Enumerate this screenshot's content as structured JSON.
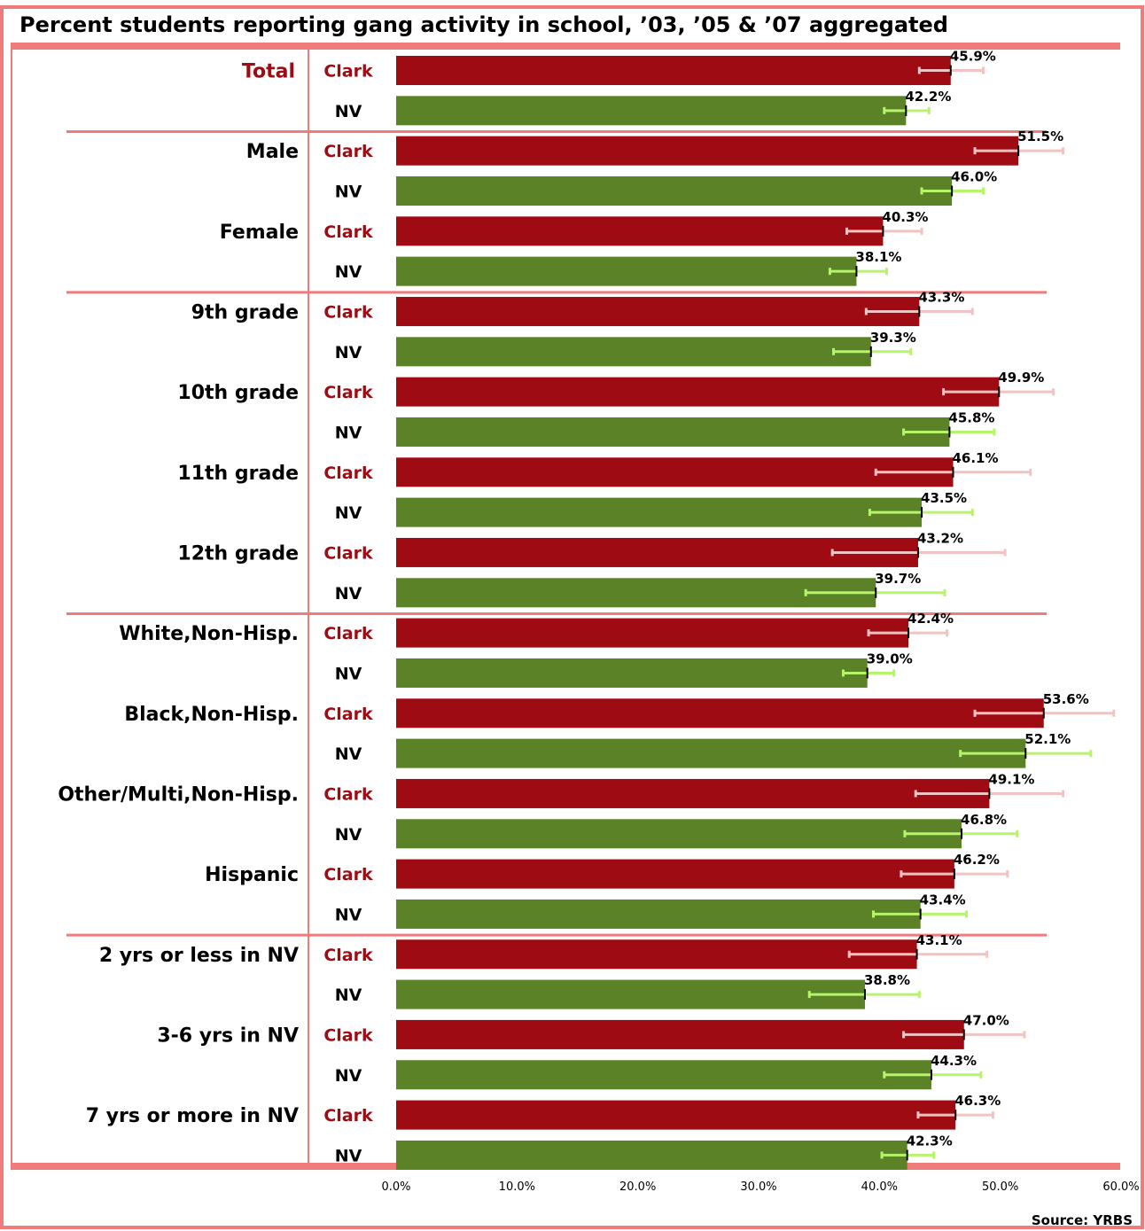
{
  "title": "Percent students reporting gang activity in school, ’03, ’05 & ’07 aggregated",
  "source": "Source: YRBS",
  "colors": {
    "frame": "#f07b7b",
    "clark_bar": "#9e0b12",
    "nv_bar": "#5b8226",
    "clark_error": "#f4c2c2",
    "nv_error": "#b6f46a",
    "total_label": "#9e0b12",
    "clark_label": "#9e0b12"
  },
  "chart_data": {
    "type": "bar",
    "orientation": "horizontal",
    "title": "Percent students reporting gang activity in school, ’03, ’05 & ’07 aggregated",
    "xlim": [
      0,
      60
    ],
    "x_ticks": [
      "0.0%",
      "10.0%",
      "20.0%",
      "30.0%",
      "40.0%",
      "50.0%",
      "60.0%"
    ],
    "x_tick_values": [
      0,
      10,
      20,
      30,
      40,
      50,
      60
    ],
    "series_names": [
      "Clark",
      "NV"
    ],
    "groups": [
      {
        "label": "Total",
        "section": 0,
        "rows": [
          {
            "series": "Clark",
            "value": 45.9,
            "value_label": "45.9%",
            "ci": [
              43.3,
              48.6
            ]
          },
          {
            "series": "NV",
            "value": 42.2,
            "value_label": "42.2%",
            "ci": [
              40.4,
              44.1
            ]
          }
        ]
      },
      {
        "label": "Male",
        "section": 1,
        "rows": [
          {
            "series": "Clark",
            "value": 51.5,
            "value_label": "51.5%",
            "ci": [
              47.9,
              55.2
            ]
          },
          {
            "series": "NV",
            "value": 46.0,
            "value_label": "46.0%",
            "ci": [
              43.5,
              48.6
            ]
          }
        ]
      },
      {
        "label": "Female",
        "section": 1,
        "rows": [
          {
            "series": "Clark",
            "value": 40.3,
            "value_label": "40.3%",
            "ci": [
              37.3,
              43.5
            ]
          },
          {
            "series": "NV",
            "value": 38.1,
            "value_label": "38.1%",
            "ci": [
              35.9,
              40.6
            ]
          }
        ]
      },
      {
        "label": "9th grade",
        "section": 2,
        "rows": [
          {
            "series": "Clark",
            "value": 43.3,
            "value_label": "43.3%",
            "ci": [
              38.9,
              47.7
            ]
          },
          {
            "series": "NV",
            "value": 39.3,
            "value_label": "39.3%",
            "ci": [
              36.2,
              42.6
            ]
          }
        ]
      },
      {
        "label": "10th grade",
        "section": 2,
        "rows": [
          {
            "series": "Clark",
            "value": 49.9,
            "value_label": "49.9%",
            "ci": [
              45.3,
              54.4
            ]
          },
          {
            "series": "NV",
            "value": 45.8,
            "value_label": "45.8%",
            "ci": [
              42.0,
              49.5
            ]
          }
        ]
      },
      {
        "label": "11th grade",
        "section": 2,
        "rows": [
          {
            "series": "Clark",
            "value": 46.1,
            "value_label": "46.1%",
            "ci": [
              39.7,
              52.5
            ]
          },
          {
            "series": "NV",
            "value": 43.5,
            "value_label": "43.5%",
            "ci": [
              39.2,
              47.7
            ]
          }
        ]
      },
      {
        "label": "12th grade",
        "section": 2,
        "rows": [
          {
            "series": "Clark",
            "value": 43.2,
            "value_label": "43.2%",
            "ci": [
              36.1,
              50.4
            ]
          },
          {
            "series": "NV",
            "value": 39.7,
            "value_label": "39.7%",
            "ci": [
              33.9,
              45.4
            ]
          }
        ]
      },
      {
        "label": "White,Non-Hisp.",
        "section": 3,
        "rows": [
          {
            "series": "Clark",
            "value": 42.4,
            "value_label": "42.4%",
            "ci": [
              39.1,
              45.6
            ]
          },
          {
            "series": "NV",
            "value": 39.0,
            "value_label": "39.0%",
            "ci": [
              37.0,
              41.2
            ]
          }
        ]
      },
      {
        "label": "Black,Non-Hisp.",
        "section": 3,
        "rows": [
          {
            "series": "Clark",
            "value": 53.6,
            "value_label": "53.6%",
            "ci": [
              47.9,
              59.4
            ]
          },
          {
            "series": "NV",
            "value": 52.1,
            "value_label": "52.1%",
            "ci": [
              46.7,
              57.5
            ]
          }
        ]
      },
      {
        "label": "Other/Multi,Non-Hisp.",
        "section": 3,
        "rows": [
          {
            "series": "Clark",
            "value": 49.1,
            "value_label": "49.1%",
            "ci": [
              43.0,
              55.2
            ]
          },
          {
            "series": "NV",
            "value": 46.8,
            "value_label": "46.8%",
            "ci": [
              42.1,
              51.4
            ]
          }
        ]
      },
      {
        "label": "Hispanic",
        "section": 3,
        "rows": [
          {
            "series": "Clark",
            "value": 46.2,
            "value_label": "46.2%",
            "ci": [
              41.8,
              50.6
            ]
          },
          {
            "series": "NV",
            "value": 43.4,
            "value_label": "43.4%",
            "ci": [
              39.5,
              47.2
            ]
          }
        ]
      },
      {
        "label": "2 yrs or less in NV",
        "section": 4,
        "rows": [
          {
            "series": "Clark",
            "value": 43.1,
            "value_label": "43.1%",
            "ci": [
              37.5,
              48.9
            ]
          },
          {
            "series": "NV",
            "value": 38.8,
            "value_label": "38.8%",
            "ci": [
              34.2,
              43.3
            ]
          }
        ]
      },
      {
        "label": "3-6 yrs in NV",
        "section": 4,
        "rows": [
          {
            "series": "Clark",
            "value": 47.0,
            "value_label": "47.0%",
            "ci": [
              42.0,
              52.0
            ]
          },
          {
            "series": "NV",
            "value": 44.3,
            "value_label": "44.3%",
            "ci": [
              40.4,
              48.4
            ]
          }
        ]
      },
      {
        "label": "7 yrs or more in NV",
        "section": 4,
        "rows": [
          {
            "series": "Clark",
            "value": 46.3,
            "value_label": "46.3%",
            "ci": [
              43.2,
              49.4
            ]
          },
          {
            "series": "NV",
            "value": 42.3,
            "value_label": "42.3%",
            "ci": [
              40.2,
              44.5
            ]
          }
        ]
      }
    ]
  }
}
